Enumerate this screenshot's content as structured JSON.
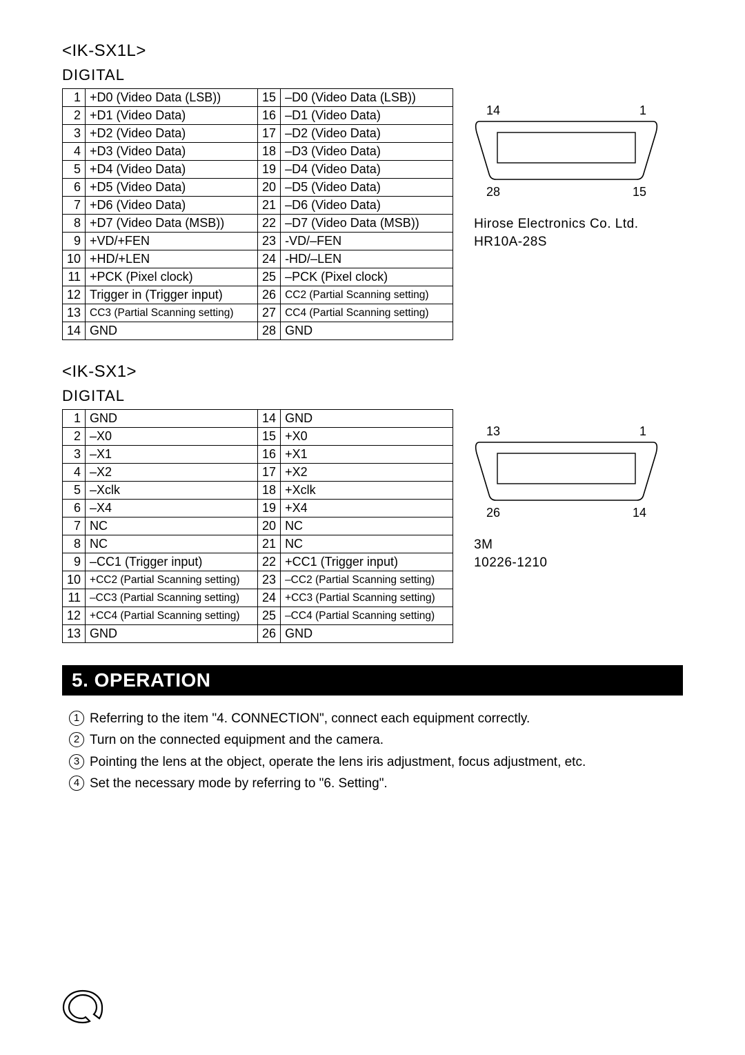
{
  "sections": [
    {
      "model": "<IK-SX1L>",
      "subhead": "DIGITAL",
      "rows": [
        {
          "a": "1",
          "ad": "+D0 (Video Data (LSB))",
          "b": "15",
          "bd": "–D0 (Video Data (LSB))"
        },
        {
          "a": "2",
          "ad": "+D1 (Video Data)",
          "b": "16",
          "bd": "–D1 (Video Data)"
        },
        {
          "a": "3",
          "ad": "+D2 (Video Data)",
          "b": "17",
          "bd": "–D2 (Video Data)"
        },
        {
          "a": "4",
          "ad": "+D3 (Video Data)",
          "b": "18",
          "bd": "–D3 (Video Data)"
        },
        {
          "a": "5",
          "ad": "+D4 (Video Data)",
          "b": "19",
          "bd": "–D4 (Video Data)"
        },
        {
          "a": "6",
          "ad": "+D5 (Video Data)",
          "b": "20",
          "bd": "–D5 (Video Data)"
        },
        {
          "a": "7",
          "ad": "+D6 (Video Data)",
          "b": "21",
          "bd": "–D6 (Video Data)"
        },
        {
          "a": "8",
          "ad": "+D7 (Video Data (MSB))",
          "b": "22",
          "bd": "–D7 (Video Data (MSB))"
        },
        {
          "a": "9",
          "ad": "+VD/+FEN",
          "b": "23",
          "bd": "-VD/–FEN"
        },
        {
          "a": "10",
          "ad": "+HD/+LEN",
          "b": "24",
          "bd": "-HD/–LEN"
        },
        {
          "a": "11",
          "ad": "+PCK (Pixel clock)",
          "b": "25",
          "bd": "–PCK (Pixel clock)"
        },
        {
          "a": "12",
          "ad": "Trigger in (Trigger input)",
          "b": "26",
          "bd": "CC2 (Partial Scanning setting)",
          "bsmall": true
        },
        {
          "a": "13",
          "ad": "CC3 (Partial Scanning setting)",
          "asmall": true,
          "b": "27",
          "bd": "CC4 (Partial Scanning setting)",
          "bsmall": true
        },
        {
          "a": "14",
          "ad": "GND",
          "b": "28",
          "bd": "GND"
        }
      ],
      "connector": {
        "tl": "14",
        "tr": "1",
        "bl": "28",
        "br": "15",
        "label1": "Hirose Electronics Co. Ltd.",
        "label2": "HR10A-28S"
      }
    },
    {
      "model": "<IK-SX1>",
      "subhead": "DIGITAL",
      "rows": [
        {
          "a": "1",
          "ad": "GND",
          "b": "14",
          "bd": "GND"
        },
        {
          "a": "2",
          "ad": "–X0",
          "b": "15",
          "bd": "+X0"
        },
        {
          "a": "3",
          "ad": "–X1",
          "b": "16",
          "bd": "+X1"
        },
        {
          "a": "4",
          "ad": "–X2",
          "b": "17",
          "bd": "+X2"
        },
        {
          "a": "5",
          "ad": "–Xclk",
          "b": "18",
          "bd": "+Xclk"
        },
        {
          "a": "6",
          "ad": "–X4",
          "b": "19",
          "bd": "+X4"
        },
        {
          "a": "7",
          "ad": "NC",
          "b": "20",
          "bd": "NC"
        },
        {
          "a": "8",
          "ad": "NC",
          "b": "21",
          "bd": "NC"
        },
        {
          "a": "9",
          "ad": "–CC1 (Trigger input)",
          "b": "22",
          "bd": "+CC1 (Trigger input)"
        },
        {
          "a": "10",
          "ad": "+CC2 (Partial Scanning setting)",
          "asmall": true,
          "b": "23",
          "bd": "–CC2 (Partial Scanning setting)",
          "bsmall": true
        },
        {
          "a": "11",
          "ad": "–CC3 (Partial Scanning setting)",
          "asmall": true,
          "b": "24",
          "bd": "+CC3 (Partial Scanning setting)",
          "bsmall": true
        },
        {
          "a": "12",
          "ad": "+CC4 (Partial Scanning setting)",
          "asmall": true,
          "b": "25",
          "bd": "–CC4 (Partial Scanning setting)",
          "bsmall": true
        },
        {
          "a": "13",
          "ad": "GND",
          "b": "26",
          "bd": "GND"
        }
      ],
      "connector": {
        "tl": "13",
        "tr": "1",
        "bl": "26",
        "br": "14",
        "label1": "3M",
        "label2": "10226-1210"
      }
    }
  ],
  "operation": {
    "title": "5. OPERATION",
    "items": [
      "Referring to the item \"4. CONNECTION\", connect each equipment correctly.",
      "Turn on the connected equipment and the camera.",
      "Pointing the lens at the object, operate the lens iris adjustment, focus adjustment, etc.",
      "Set the necessary mode by referring to \"6. Setting\"."
    ]
  }
}
